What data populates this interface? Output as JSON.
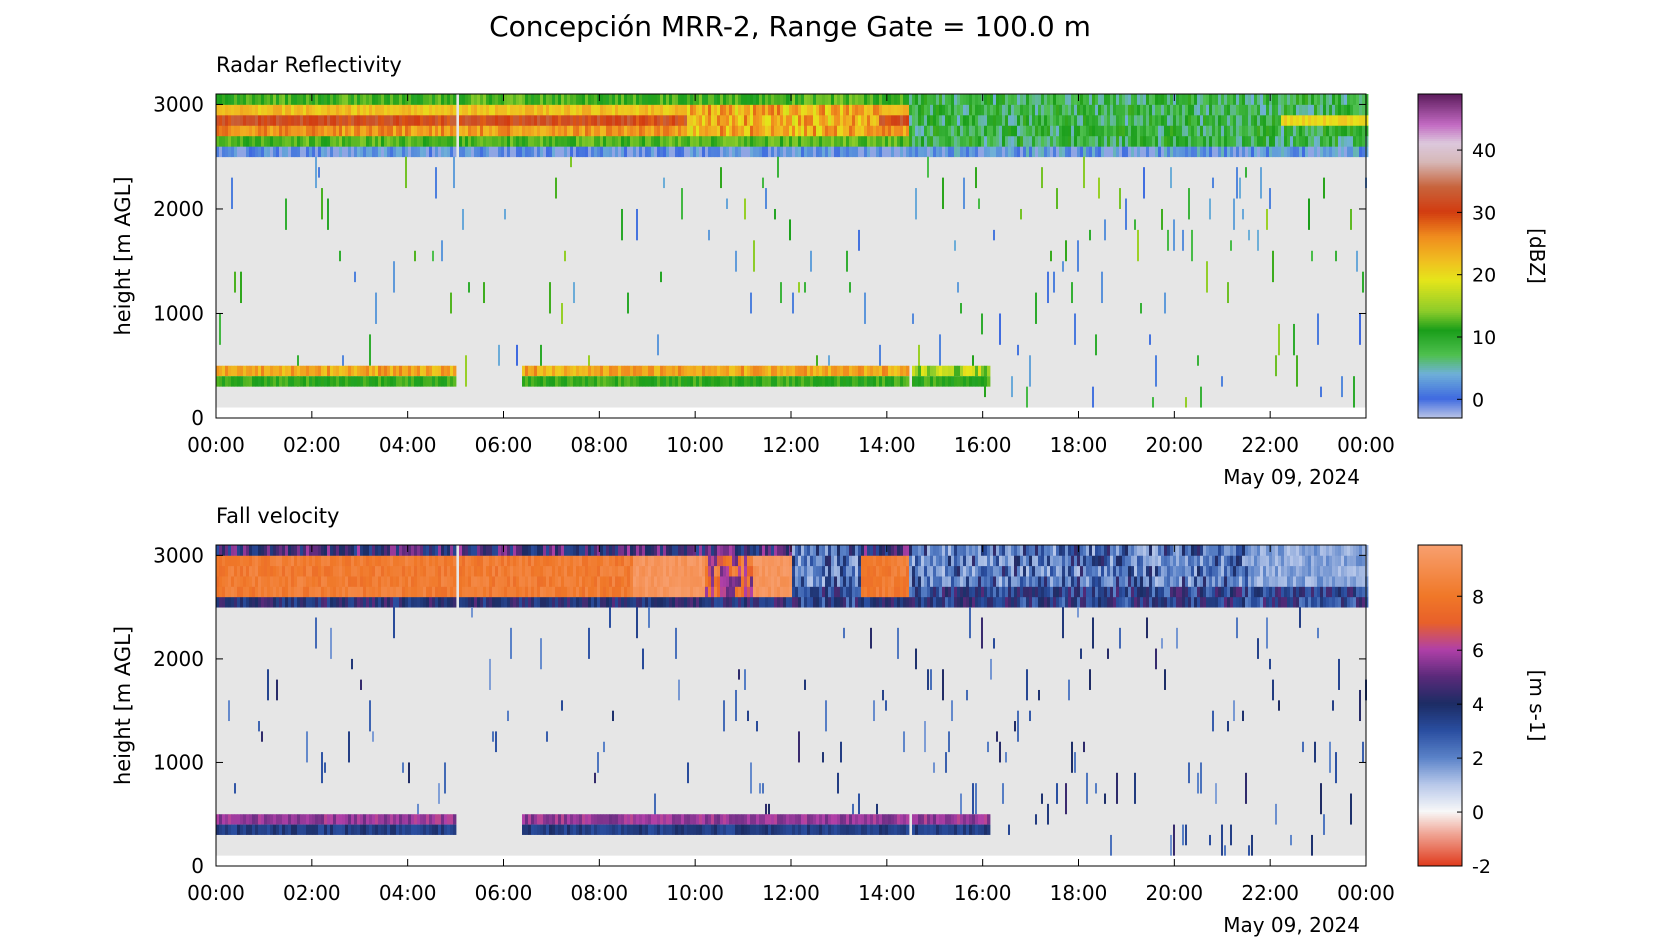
{
  "figure": {
    "title": "Concepción MRR-2, Range Gate = 100.0 m"
  },
  "chart_data": [
    {
      "type": "heatmap",
      "title": "Radar Reflectivity",
      "ylabel": "height [m AGL]",
      "xlabel_date": "May 09, 2024",
      "x_ticks": [
        "00:00",
        "02:00",
        "04:00",
        "06:00",
        "08:00",
        "10:00",
        "12:00",
        "14:00",
        "16:00",
        "18:00",
        "20:00",
        "22:00",
        "00:00"
      ],
      "x_range_hours": [
        0,
        24
      ],
      "y_ticks": [
        0,
        1000,
        2000,
        3000
      ],
      "y_range": [
        0,
        3100
      ],
      "colorbar": {
        "label": "[dBZ]",
        "range": [
          -3,
          49
        ],
        "ticks": [
          0,
          10,
          20,
          30,
          40
        ],
        "stops": [
          {
            "v": -3,
            "c": "#b7c3e6"
          },
          {
            "v": 0,
            "c": "#3f6ae0"
          },
          {
            "v": 4,
            "c": "#6fb0d8"
          },
          {
            "v": 7,
            "c": "#4fc04f"
          },
          {
            "v": 11,
            "c": "#1a9e1a"
          },
          {
            "v": 14,
            "c": "#8ccc2a"
          },
          {
            "v": 19,
            "c": "#e5e51a"
          },
          {
            "v": 22,
            "c": "#f0c020"
          },
          {
            "v": 26,
            "c": "#f08c1e"
          },
          {
            "v": 30,
            "c": "#d23c10"
          },
          {
            "v": 34,
            "c": "#c8643c"
          },
          {
            "v": 38,
            "c": "#d6b8b8"
          },
          {
            "v": 41,
            "c": "#dcc8dc"
          },
          {
            "v": 44,
            "c": "#c26ac2"
          },
          {
            "v": 49,
            "c": "#5a1a5a"
          }
        ]
      },
      "background_color": "#e6e6e6",
      "features": [
        {
          "name": "upper echo band",
          "t_start": 0.0,
          "t_end": 24.0,
          "h_bottom": 2500,
          "h_top": 3100
        },
        {
          "name": "melting layer band",
          "t_start": 0.0,
          "t_end": 4.95,
          "h_bottom": 300,
          "h_top": 500
        },
        {
          "name": "melting layer band",
          "t_start": 6.35,
          "t_end": 14.45,
          "h_bottom": 300,
          "h_top": 500
        },
        {
          "name": "melting layer band",
          "t_start": 14.5,
          "t_end": 16.15,
          "h_bottom": 300,
          "h_top": 500
        }
      ]
    },
    {
      "type": "heatmap",
      "title": "Fall velocity",
      "ylabel": "height [m AGL]",
      "xlabel_date": "May 09, 2024",
      "x_ticks": [
        "00:00",
        "02:00",
        "04:00",
        "06:00",
        "08:00",
        "10:00",
        "12:00",
        "14:00",
        "16:00",
        "18:00",
        "20:00",
        "22:00",
        "00:00"
      ],
      "x_range_hours": [
        0,
        24
      ],
      "y_ticks": [
        0,
        1000,
        2000,
        3000
      ],
      "y_range": [
        0,
        3100
      ],
      "colorbar": {
        "label": "[m s-1]",
        "range": [
          -2,
          9.9
        ],
        "ticks": [
          -2,
          0,
          2,
          4,
          6,
          8
        ],
        "stops": [
          {
            "v": -2,
            "c": "#e03c1e"
          },
          {
            "v": -0.8,
            "c": "#f0a898"
          },
          {
            "v": 0,
            "c": "#f8f8f8"
          },
          {
            "v": 1,
            "c": "#b8c8ea"
          },
          {
            "v": 2,
            "c": "#5a82c8"
          },
          {
            "v": 3,
            "c": "#2a4ea0"
          },
          {
            "v": 4,
            "c": "#1c2c64"
          },
          {
            "v": 5,
            "c": "#5a2a7a"
          },
          {
            "v": 6,
            "c": "#b040a8"
          },
          {
            "v": 7,
            "c": "#e8602a"
          },
          {
            "v": 8,
            "c": "#f07828"
          },
          {
            "v": 9.9,
            "c": "#f8a070"
          }
        ]
      },
      "background_color": "#e6e6e6",
      "features": [
        {
          "name": "upper echo band",
          "t_start": 0.0,
          "t_end": 24.0,
          "h_bottom": 2500,
          "h_top": 3100
        },
        {
          "name": "melting layer band",
          "t_start": 0.0,
          "t_end": 4.95,
          "h_bottom": 300,
          "h_top": 500
        },
        {
          "name": "melting layer band",
          "t_start": 6.35,
          "t_end": 14.45,
          "h_bottom": 300,
          "h_top": 500
        },
        {
          "name": "melting layer band",
          "t_start": 14.5,
          "t_end": 16.15,
          "h_bottom": 300,
          "h_top": 500
        }
      ]
    }
  ]
}
